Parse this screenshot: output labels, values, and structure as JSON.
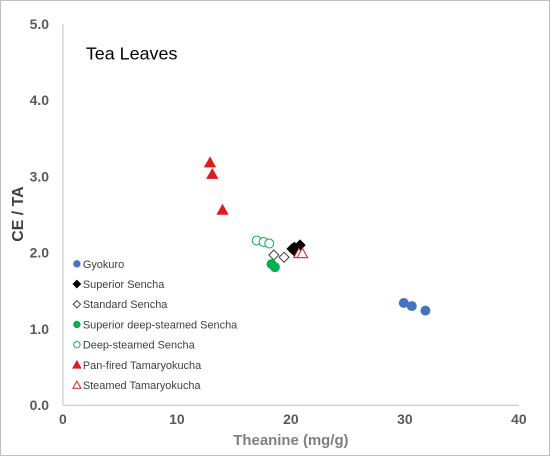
{
  "chart_data": {
    "type": "scatter",
    "title": "",
    "annotation": "Tea Leaves",
    "xlabel": "Theanine (mg/g)",
    "ylabel": "CE / TA",
    "xlim": [
      0,
      40
    ],
    "ylim": [
      0,
      5
    ],
    "xticks": [
      0,
      10,
      20,
      30,
      40
    ],
    "yticks": [
      "0.0",
      "1.0",
      "2.0",
      "3.0",
      "4.0",
      "5.0"
    ],
    "grid": false,
    "legend_position": "left",
    "series": [
      {
        "name": "Gyokuro",
        "marker": "circle",
        "fill": "#4472c4",
        "stroke": "#4472c4",
        "x": [
          29.9,
          30.6,
          31.8
        ],
        "y": [
          1.34,
          1.3,
          1.24
        ]
      },
      {
        "name": "Superior Sencha",
        "marker": "diamond",
        "fill": "#000000",
        "stroke": "#000000",
        "x": [
          20.1,
          20.4,
          20.8,
          20.3
        ],
        "y": [
          2.05,
          2.01,
          2.1,
          2.07
        ]
      },
      {
        "name": "Standard Sencha",
        "marker": "diamond",
        "fill": "#ffffff",
        "stroke": "#404040",
        "x": [
          18.5,
          19.4
        ],
        "y": [
          1.97,
          1.94
        ]
      },
      {
        "name": "Superior deep-steamed Sencha",
        "marker": "circle",
        "fill": "#00b050",
        "stroke": "#00b050",
        "x": [
          18.3,
          18.6
        ],
        "y": [
          1.85,
          1.81
        ]
      },
      {
        "name": "Deep-steamed Sencha",
        "marker": "circle",
        "fill": "#ffffff",
        "stroke": "#00b050",
        "x": [
          17.0,
          17.6,
          18.1
        ],
        "y": [
          2.16,
          2.14,
          2.12
        ]
      },
      {
        "name": "Pan-fired Tamaryokucha",
        "marker": "triangle",
        "fill": "#e31a1c",
        "stroke": "#e31a1c",
        "x": [
          12.9,
          13.1,
          14.0
        ],
        "y": [
          3.18,
          3.03,
          2.56
        ]
      },
      {
        "name": "Steamed Tamaryokucha",
        "marker": "triangle",
        "fill": "#ffffff",
        "stroke": "#e31a1c",
        "x": [
          20.7,
          21.0
        ],
        "y": [
          1.99,
          1.99
        ]
      }
    ]
  }
}
